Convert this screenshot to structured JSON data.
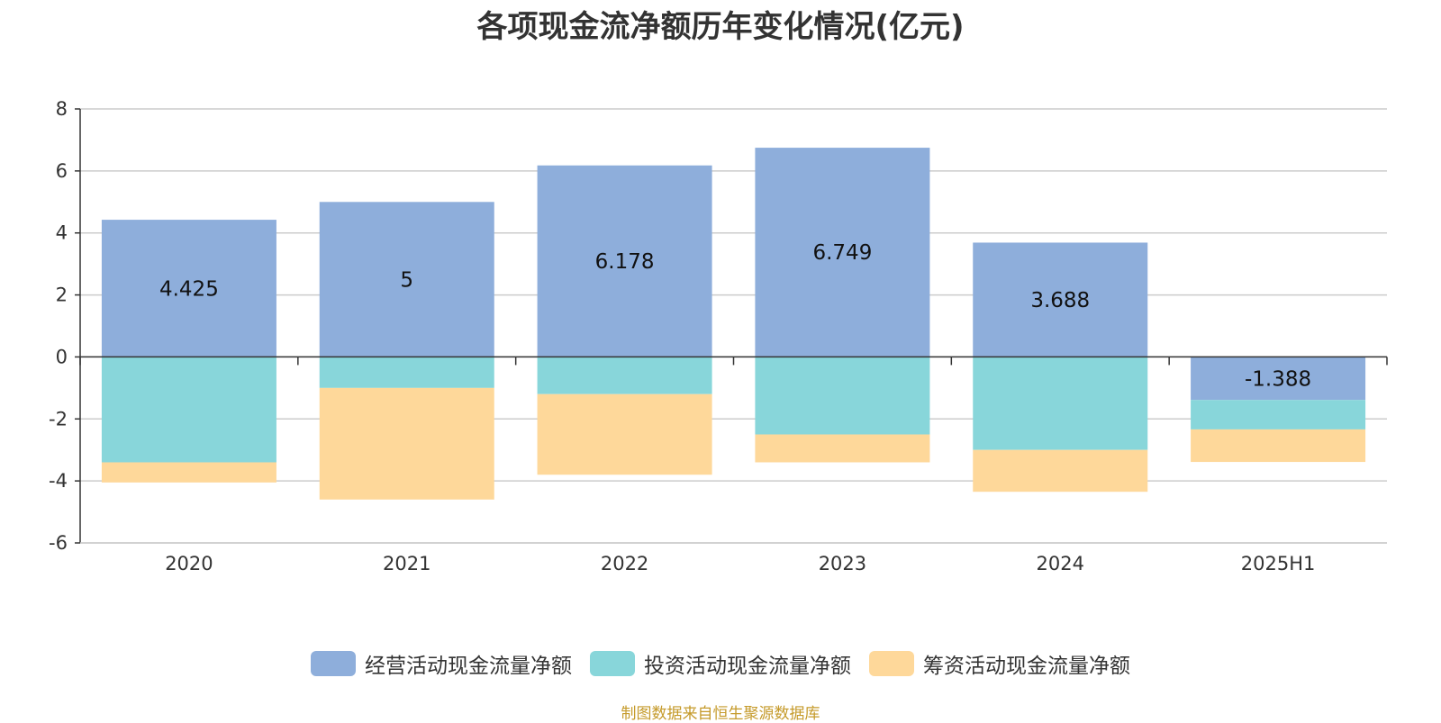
{
  "chart_data": {
    "type": "bar",
    "stacked": true,
    "title": "各项现金流净额历年变化情况(亿元)",
    "categories": [
      "2020",
      "2021",
      "2022",
      "2023",
      "2024",
      "2025H1"
    ],
    "series": [
      {
        "name": "经营活动现金流量净额",
        "color": "#8eaedb",
        "values": [
          4.425,
          5,
          6.178,
          6.749,
          3.688,
          -1.388
        ],
        "labels": [
          "4.425",
          "5",
          "6.178",
          "6.749",
          "3.688",
          "-1.388"
        ]
      },
      {
        "name": "投资活动现金流量净额",
        "color": "#88d6da",
        "values": [
          -3.4,
          -1.0,
          -1.2,
          -2.5,
          -3.0,
          -0.95
        ]
      },
      {
        "name": "筹资活动现金流量净额",
        "color": "#fed89a",
        "values": [
          -0.65,
          -3.6,
          -2.6,
          -0.9,
          -1.35,
          -1.05
        ]
      }
    ],
    "ylim": [
      -6,
      8
    ],
    "yticks": [
      8,
      6,
      4,
      2,
      0,
      -2,
      -4,
      -6
    ],
    "ytick_labels": [
      "8",
      "6",
      "4",
      "2",
      "0",
      "-2",
      "-4",
      "-6"
    ],
    "xlabel": "",
    "ylabel": "",
    "grid": true,
    "legend_position": "bottom"
  },
  "source_note": "制图数据来自恒生聚源数据库"
}
